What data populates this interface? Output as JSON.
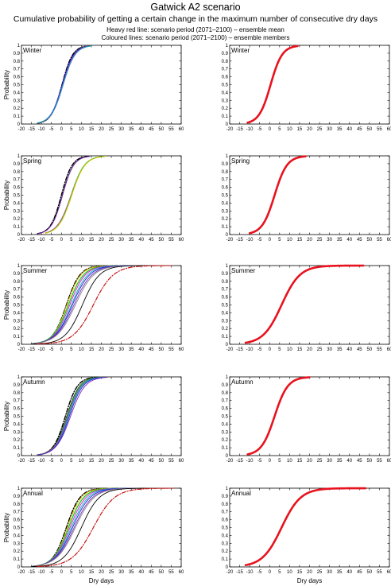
{
  "header": {
    "title": "Gatwick A2 scenario",
    "subtitle": "Cumulative probability of getting a certain change in the maximum number of consecutive dry days",
    "legend_line_1": "Heavy red line: scenario period (2071–2100) – ensemble mean",
    "legend_line_2": "Coloured lines: scenario period (2071–2100) – ensemble members"
  },
  "axes": {
    "xlabel": "Dry days",
    "ylabel": "Probability",
    "xlim": [
      -20,
      60
    ],
    "ylim": [
      0,
      1
    ],
    "xticks": [
      -20,
      -15,
      -10,
      -5,
      0,
      5,
      10,
      15,
      20,
      25,
      30,
      35,
      40,
      45,
      50,
      55,
      60
    ],
    "yticks": [
      0,
      0.1,
      0.2,
      0.3,
      0.4,
      0.5,
      0.6,
      0.7,
      0.8,
      0.9,
      1
    ]
  },
  "colors": {
    "ensemble_mean": "#e8121e",
    "members": [
      "#000000",
      "#22c222",
      "#7b2ab8",
      "#1c1cd8",
      "#00b3b3",
      "#e00fe0",
      "#e4c200",
      "#c81414",
      "#8a8a8a"
    ]
  },
  "chart_data": [
    {
      "type": "line",
      "panel": "members",
      "season": "Winter",
      "series": [
        {
          "style": "dashdot",
          "color": "#000000",
          "width": 1.4,
          "mean": 0.3,
          "scale": 2.7,
          "range": [
            -12,
            12
          ]
        },
        {
          "style": "solid",
          "color": "#000000",
          "mean": 0.5,
          "scale": 2.8,
          "range": [
            -12,
            14
          ]
        },
        {
          "style": "solid",
          "color": "#22c222",
          "width": 1.3,
          "mean": 0.6,
          "scale": 2.9,
          "range": [
            -12,
            14
          ]
        },
        {
          "style": "solid",
          "color": "#7b2ab8",
          "mean": 0.9,
          "scale": 3.0,
          "range": [
            -12,
            15
          ]
        },
        {
          "style": "solid",
          "color": "#1c1cd8",
          "mean": 0.4,
          "scale": 2.9,
          "range": [
            -12,
            14
          ]
        },
        {
          "style": "solid",
          "color": "#e00fe0",
          "mean": 0.7,
          "scale": 2.9,
          "range": [
            -12,
            14
          ]
        },
        {
          "style": "solid",
          "color": "#00b3b3",
          "mean": 0.8,
          "scale": 3.0,
          "range": [
            -12,
            15
          ]
        }
      ]
    },
    {
      "type": "line",
      "panel": "mean",
      "season": "Winter",
      "series": [
        {
          "style": "solid",
          "color": "#e8121e",
          "width": 2.6,
          "mean": 0.5,
          "scale": 2.9,
          "range": [
            -11,
            14
          ]
        }
      ]
    },
    {
      "type": "line",
      "panel": "members",
      "season": "Spring",
      "series": [
        {
          "style": "dashdot",
          "color": "#000000",
          "width": 1.4,
          "mean": 0.0,
          "scale": 2.7,
          "range": [
            -12,
            14
          ]
        },
        {
          "style": "solid",
          "color": "#000000",
          "mean": 0.5,
          "scale": 2.8,
          "range": [
            -12,
            14
          ]
        },
        {
          "style": "solid",
          "color": "#7b2ab8",
          "mean": 0.6,
          "scale": 2.8,
          "range": [
            -12,
            14
          ]
        },
        {
          "style": "solid",
          "color": "#e00fe0",
          "mean": 4.8,
          "scale": 3.4,
          "range": [
            -8,
            22
          ]
        },
        {
          "style": "solid",
          "color": "#22c222",
          "width": 1.3,
          "mean": 5.0,
          "scale": 3.3,
          "range": [
            -8,
            22
          ]
        },
        {
          "style": "dashdot",
          "color": "#e4c200",
          "width": 1.2,
          "mean": 5.2,
          "scale": 3.3,
          "range": [
            -8,
            22
          ]
        }
      ]
    },
    {
      "type": "line",
      "panel": "mean",
      "season": "Spring",
      "series": [
        {
          "style": "solid",
          "color": "#e8121e",
          "width": 2.6,
          "mean": 2.5,
          "scale": 3.1,
          "range": [
            -10,
            18
          ]
        }
      ]
    },
    {
      "type": "line",
      "panel": "members",
      "season": "Summer",
      "series": [
        {
          "style": "dashdot",
          "color": "#000000",
          "width": 1.4,
          "mean": 2.5,
          "scale": 3.4,
          "range": [
            -15,
            30
          ]
        },
        {
          "style": "dashdot",
          "color": "#e4c200",
          "width": 1.2,
          "mean": 2.8,
          "scale": 3.5,
          "range": [
            -15,
            30
          ]
        },
        {
          "style": "solid",
          "color": "#22c222",
          "width": 1.3,
          "mean": 3.5,
          "scale": 3.8,
          "range": [
            -15,
            32
          ]
        },
        {
          "style": "solid",
          "color": "#e00fe0",
          "mean": 4.2,
          "scale": 3.9,
          "range": [
            -15,
            33
          ]
        },
        {
          "style": "solid",
          "color": "#00b3b3",
          "mean": 5.0,
          "scale": 4.1,
          "range": [
            -15,
            34
          ]
        },
        {
          "style": "solid",
          "color": "#1c1cd8",
          "mean": 5.5,
          "scale": 4.3,
          "range": [
            -15,
            35
          ]
        },
        {
          "style": "solid",
          "color": "#7b2ab8",
          "mean": 6.3,
          "scale": 4.5,
          "range": [
            -15,
            37
          ]
        },
        {
          "style": "solid",
          "color": "#8a8a8a",
          "mean": 7.0,
          "scale": 4.6,
          "range": [
            -15,
            38
          ]
        },
        {
          "style": "solid",
          "color": "#000000",
          "mean": 10.5,
          "scale": 4.3,
          "range": [
            -15,
            42
          ]
        },
        {
          "style": "dashdot",
          "color": "#c81414",
          "width": 1.2,
          "mean": 16.0,
          "scale": 5.0,
          "range": [
            -12,
            55
          ]
        }
      ]
    },
    {
      "type": "line",
      "panel": "mean",
      "season": "Summer",
      "series": [
        {
          "style": "solid",
          "color": "#e8121e",
          "width": 2.6,
          "mean": 6.0,
          "scale": 4.6,
          "range": [
            -12,
            47
          ]
        }
      ]
    },
    {
      "type": "line",
      "panel": "members",
      "season": "Autumn",
      "series": [
        {
          "style": "dashdot",
          "color": "#000000",
          "width": 1.4,
          "mean": 2.0,
          "scale": 3.0,
          "range": [
            -12,
            18
          ]
        },
        {
          "style": "solid",
          "color": "#000000",
          "mean": 2.7,
          "scale": 3.2,
          "range": [
            -12,
            19
          ]
        },
        {
          "style": "solid",
          "color": "#22c222",
          "width": 1.3,
          "mean": 3.0,
          "scale": 3.2,
          "range": [
            -12,
            20
          ]
        },
        {
          "style": "solid",
          "color": "#e00fe0",
          "mean": 3.3,
          "scale": 3.3,
          "range": [
            -12,
            20
          ]
        },
        {
          "style": "solid",
          "color": "#00b3b3",
          "mean": 3.6,
          "scale": 3.3,
          "range": [
            -12,
            21
          ]
        },
        {
          "style": "solid",
          "color": "#1c1cd8",
          "mean": 4.0,
          "scale": 3.4,
          "range": [
            -12,
            21
          ]
        },
        {
          "style": "solid",
          "color": "#7b2ab8",
          "mean": 4.6,
          "scale": 3.6,
          "range": [
            -12,
            23
          ]
        }
      ]
    },
    {
      "type": "line",
      "panel": "mean",
      "season": "Autumn",
      "series": [
        {
          "style": "solid",
          "color": "#e8121e",
          "width": 2.6,
          "mean": 2.5,
          "scale": 3.3,
          "range": [
            -11,
            20
          ]
        }
      ]
    },
    {
      "type": "line",
      "panel": "members",
      "season": "Annual",
      "series": [
        {
          "style": "dashdot",
          "color": "#000000",
          "width": 1.4,
          "mean": 2.5,
          "scale": 3.4,
          "range": [
            -15,
            30
          ]
        },
        {
          "style": "dashdot",
          "color": "#e4c200",
          "width": 1.2,
          "mean": 3.0,
          "scale": 3.5,
          "range": [
            -15,
            30
          ]
        },
        {
          "style": "solid",
          "color": "#22c222",
          "width": 1.3,
          "mean": 3.6,
          "scale": 3.8,
          "range": [
            -15,
            32
          ]
        },
        {
          "style": "solid",
          "color": "#e00fe0",
          "mean": 4.3,
          "scale": 4.0,
          "range": [
            -15,
            34
          ]
        },
        {
          "style": "solid",
          "color": "#00b3b3",
          "mean": 5.0,
          "scale": 4.2,
          "range": [
            -15,
            35
          ]
        },
        {
          "style": "solid",
          "color": "#1c1cd8",
          "mean": 5.6,
          "scale": 4.4,
          "range": [
            -15,
            36
          ]
        },
        {
          "style": "solid",
          "color": "#7b2ab8",
          "mean": 6.4,
          "scale": 4.6,
          "range": [
            -15,
            38
          ]
        },
        {
          "style": "solid",
          "color": "#8a8a8a",
          "mean": 7.0,
          "scale": 4.7,
          "range": [
            -15,
            39
          ]
        },
        {
          "style": "solid",
          "color": "#000000",
          "mean": 10.0,
          "scale": 4.5,
          "range": [
            -15,
            42
          ]
        },
        {
          "style": "dashdot",
          "color": "#c81414",
          "width": 1.2,
          "mean": 16.0,
          "scale": 5.3,
          "range": [
            -12,
            56
          ]
        }
      ]
    },
    {
      "type": "line",
      "panel": "mean",
      "season": "Annual",
      "series": [
        {
          "style": "solid",
          "color": "#e8121e",
          "width": 2.6,
          "mean": 6.0,
          "scale": 4.8,
          "range": [
            -12,
            48
          ]
        }
      ]
    }
  ]
}
